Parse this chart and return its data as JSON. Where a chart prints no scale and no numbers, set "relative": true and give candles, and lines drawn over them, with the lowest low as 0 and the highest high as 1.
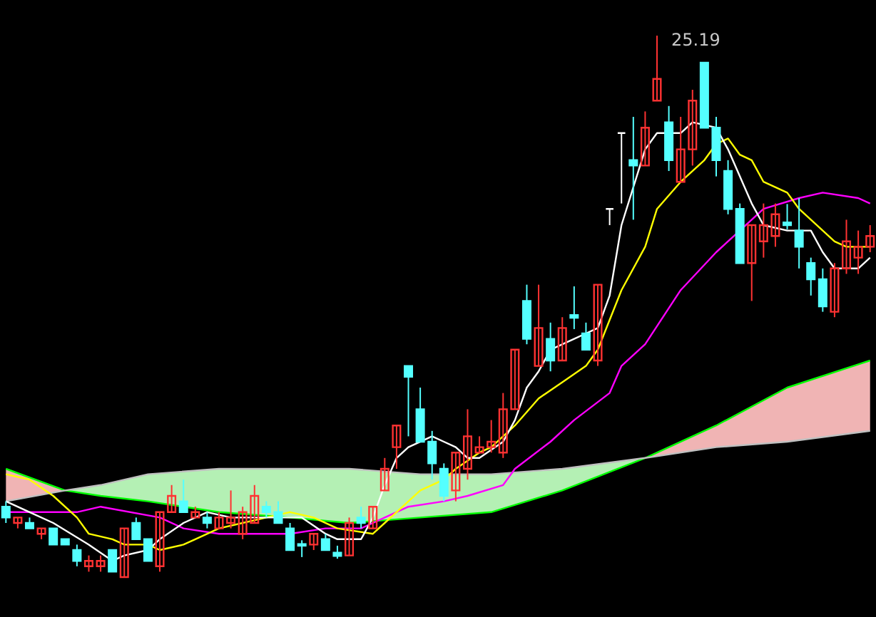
{
  "chart_data": {
    "type": "candlestick",
    "relative": true,
    "categories": [
      null,
      null,
      null,
      null,
      null,
      null,
      null,
      null,
      null,
      null,
      null,
      null,
      null,
      null,
      null,
      null,
      null,
      null,
      null,
      null,
      null,
      null,
      null,
      null,
      null,
      null,
      null,
      null,
      null,
      null,
      null,
      null,
      null,
      null,
      null,
      null,
      null,
      null,
      null,
      null,
      null,
      null,
      null,
      null,
      null,
      null,
      null,
      null,
      null,
      null,
      null,
      null,
      null,
      null,
      null,
      null,
      null,
      null,
      null,
      null,
      null,
      null,
      null,
      null,
      null,
      null,
      null,
      null,
      null,
      null,
      null,
      null,
      null,
      null
    ],
    "ohlc": [
      [
        0.13,
        0.14,
        0.1,
        0.11
      ],
      [
        0.1,
        0.11,
        0.09,
        0.11
      ],
      [
        0.1,
        0.11,
        0.09,
        0.09
      ],
      [
        0.08,
        0.09,
        0.07,
        0.09
      ],
      [
        0.09,
        0.09,
        0.06,
        0.06
      ],
      [
        0.07,
        0.07,
        0.06,
        0.06
      ],
      [
        0.05,
        0.06,
        0.02,
        0.03
      ],
      [
        0.02,
        0.04,
        0.01,
        0.03
      ],
      [
        0.02,
        0.04,
        0.01,
        0.03
      ],
      [
        0.05,
        0.05,
        0.01,
        0.01
      ],
      [
        0,
        0.09,
        0,
        0.09
      ],
      [
        0.1,
        0.11,
        0.07,
        0.07
      ],
      [
        0.07,
        0.07,
        0.03,
        0.03
      ],
      [
        0.02,
        0.12,
        0.01,
        0.12
      ],
      [
        0.12,
        0.17,
        0.12,
        0.15
      ],
      [
        0.14,
        0.18,
        0.12,
        0.12
      ],
      [
        0.11,
        0.13,
        0.11,
        0.12
      ],
      [
        0.11,
        0.12,
        0.09,
        0.1
      ],
      [
        0.09,
        0.12,
        0.09,
        0.11
      ],
      [
        0.1,
        0.16,
        0.09,
        0.11
      ],
      [
        0.08,
        0.13,
        0.07,
        0.12
      ],
      [
        0.1,
        0.17,
        0.1,
        0.15
      ],
      [
        0.13,
        0.14,
        0.11,
        0.12
      ],
      [
        0.12,
        0.14,
        0.1,
        0.1
      ],
      [
        0.09,
        0.1,
        0.05,
        0.05
      ],
      [
        0.061,
        0.068,
        0.037,
        0.058
      ],
      [
        0.06,
        0.08,
        0.05,
        0.08
      ],
      [
        0.07,
        0.08,
        0.05,
        0.05
      ],
      [
        0.045,
        0.058,
        0.034,
        0.039
      ],
      [
        0.04,
        0.11,
        0.04,
        0.1
      ],
      [
        0.11,
        0.13,
        0.09,
        0.1
      ],
      [
        0.09,
        0.13,
        0.09,
        0.13
      ],
      [
        0.16,
        0.22,
        0.16,
        0.2
      ],
      [
        0.24,
        0.28,
        0.2,
        0.28
      ],
      [
        0.39,
        0.39,
        0.26,
        0.37
      ],
      [
        0.31,
        0.35,
        0.25,
        0.25
      ],
      [
        0.25,
        0.27,
        0.18,
        0.21
      ],
      [
        0.2,
        0.21,
        0.14,
        0.15
      ],
      [
        0.16,
        0.23,
        0.14,
        0.23
      ],
      [
        0.2,
        0.31,
        0.18,
        0.26
      ],
      [
        0.23,
        0.26,
        0.23,
        0.24
      ],
      [
        0.24,
        0.29,
        0.23,
        0.25
      ],
      [
        0.23,
        0.34,
        0.22,
        0.31
      ],
      [
        0.31,
        0.42,
        0.31,
        0.42
      ],
      [
        0.51,
        0.54,
        0.43,
        0.44
      ],
      [
        0.39,
        0.54,
        0.39,
        0.46
      ],
      [
        0.44,
        0.47,
        0.38,
        0.4
      ],
      [
        0.4,
        0.48,
        0.4,
        0.46
      ],
      [
        0.484,
        0.537,
        0.458,
        0.479
      ],
      [
        0.45,
        0.47,
        0.42,
        0.42
      ],
      [
        0.4,
        0.54,
        0.39,
        0.54
      ],
      [
        0.68,
        0.68,
        0.65,
        0.68
      ],
      [
        0.82,
        0.82,
        0.69,
        0.82
      ],
      [
        0.77,
        0.85,
        0.66,
        0.76
      ],
      [
        0.76,
        0.86,
        0.76,
        0.83
      ],
      [
        0.88,
        1,
        0.88,
        0.92
      ],
      [
        0.84,
        0.87,
        0.75,
        0.77
      ],
      [
        0.73,
        0.85,
        0.73,
        0.79
      ],
      [
        0.79,
        0.9,
        0.76,
        0.88
      ],
      [
        0.95,
        0.95,
        0.83,
        0.83
      ],
      [
        0.83,
        0.85,
        0.74,
        0.77
      ],
      [
        0.75,
        0.77,
        0.67,
        0.68
      ],
      [
        0.68,
        0.69,
        0.58,
        0.58
      ],
      [
        0.58,
        0.65,
        0.51,
        0.65
      ],
      [
        0.62,
        0.69,
        0.59,
        0.65
      ],
      [
        0.63,
        0.69,
        0.61,
        0.67
      ],
      [
        0.655,
        0.689,
        0.642,
        0.65
      ],
      [
        0.64,
        0.7,
        0.57,
        0.61
      ],
      [
        0.58,
        0.59,
        0.52,
        0.55
      ],
      [
        0.55,
        0.57,
        0.49,
        0.5
      ],
      [
        0.49,
        0.58,
        0.48,
        0.57
      ],
      [
        0.57,
        0.66,
        0.56,
        0.62
      ],
      [
        0.59,
        0.64,
        0.56,
        0.61
      ],
      [
        0.61,
        0.65,
        0.6,
        0.63
      ]
    ],
    "series": [
      {
        "type": "line",
        "color": "#00ff00",
        "values": [
          0.2,
          null,
          null,
          null,
          null,
          0.16,
          null,
          null,
          0.15,
          null,
          null,
          null,
          0.14,
          null,
          null,
          null,
          null,
          null,
          0.12,
          null,
          null,
          null,
          null,
          null,
          0.11,
          null,
          null,
          null,
          null,
          0.1,
          null,
          null,
          null,
          null,
          null,
          0.11,
          null,
          null,
          null,
          null,
          null,
          0.12,
          null,
          null,
          null,
          null,
          null,
          0.16,
          null,
          null,
          null,
          null,
          null,
          null,
          0.22,
          null,
          null,
          null,
          null,
          null,
          0.28,
          null,
          null,
          null,
          null,
          null,
          0.35,
          null,
          null,
          null,
          null,
          null,
          null,
          0.4
        ],
        "upper": [
          0.2,
          null,
          null,
          null,
          null,
          0.16,
          null,
          null,
          null,
          null,
          null,
          null,
          null,
          null,
          null,
          null,
          null,
          null,
          null,
          null,
          null,
          null,
          null,
          null,
          null,
          null,
          null,
          null,
          null,
          null,
          null,
          null,
          null,
          null,
          null,
          null,
          null,
          null,
          null,
          null,
          null,
          null,
          null,
          null,
          null,
          null,
          null,
          null,
          null,
          null,
          null,
          null,
          null,
          null,
          0.22,
          null,
          null,
          null,
          null,
          null,
          0.28,
          null,
          null,
          null,
          null,
          null,
          0.35,
          null,
          null,
          null,
          null,
          null,
          null,
          0.4
        ],
        "lower": [
          0.14,
          null,
          null,
          null,
          null,
          0.16,
          null,
          null,
          null,
          null,
          null,
          null,
          null,
          null,
          null,
          null,
          null,
          null,
          null,
          null,
          null,
          null,
          null,
          null,
          null,
          null,
          null,
          null,
          null,
          null,
          null,
          null,
          null,
          null,
          null,
          null,
          null,
          null,
          null,
          null,
          null,
          null,
          null,
          null,
          null,
          null,
          null,
          null,
          null,
          null,
          null,
          null,
          null,
          null,
          0.22,
          null,
          null,
          null,
          null,
          null,
          0.24,
          null,
          null,
          null,
          null,
          null,
          0.25,
          null,
          null,
          null,
          null,
          null,
          null,
          0.27
        ]
      },
      {
        "type": "line",
        "color": "#c0c0c0",
        "values": [
          0.14,
          null,
          null,
          null,
          null,
          0.16,
          null,
          null,
          0.17,
          null,
          null,
          null,
          0.19,
          null,
          null,
          null,
          null,
          null,
          0.2,
          null,
          null,
          null,
          null,
          null,
          0.2,
          null,
          null,
          null,
          null,
          0.2,
          null,
          null,
          null,
          null,
          null,
          0.19,
          null,
          null,
          null,
          null,
          null,
          0.19,
          null,
          null,
          null,
          null,
          null,
          0.2,
          null,
          null,
          null,
          null,
          null,
          null,
          0.22,
          null,
          null,
          null,
          null,
          null,
          0.24,
          null,
          null,
          null,
          null,
          null,
          0.25,
          null,
          null,
          null,
          null,
          null,
          null,
          0.27
        ],
        "upper": [
          null,
          null,
          null,
          null,
          null,
          0.16,
          null,
          null,
          0.17,
          null,
          null,
          null,
          0.19,
          null,
          null,
          null,
          null,
          null,
          0.2,
          null,
          null,
          null,
          null,
          null,
          0.2,
          null,
          null,
          null,
          null,
          0.2,
          null,
          null,
          null,
          null,
          null,
          0.19,
          null,
          null,
          null,
          null,
          null,
          0.19,
          null,
          null,
          null,
          null,
          null,
          0.2,
          null,
          null,
          null,
          null,
          null,
          null,
          0.22,
          null,
          null,
          null,
          null,
          null,
          null,
          null,
          null,
          null,
          null,
          null,
          null,
          null,
          null,
          null,
          null,
          null,
          null,
          null
        ],
        "lower": [
          null,
          null,
          null,
          null,
          null,
          0.16,
          null,
          null,
          0.15,
          null,
          null,
          null,
          0.14,
          null,
          null,
          null,
          null,
          null,
          0.12,
          null,
          null,
          null,
          null,
          null,
          0.11,
          null,
          null,
          null,
          null,
          0.1,
          null,
          null,
          null,
          null,
          null,
          0.11,
          null,
          null,
          null,
          null,
          null,
          0.12,
          null,
          null,
          null,
          null,
          null,
          0.16,
          null,
          null,
          null,
          null,
          null,
          null,
          0.22,
          null,
          null,
          null,
          null,
          null,
          null,
          null,
          null,
          null,
          null,
          null,
          null,
          null,
          null,
          null,
          null,
          null,
          null,
          null
        ]
      },
      {
        "type": "line",
        "color": "#ff00ff",
        "values": [
          0.12,
          null,
          null,
          null,
          null,
          null,
          0.12,
          null,
          0.13,
          null,
          null,
          null,
          null,
          0.11,
          null,
          0.09,
          null,
          null,
          0.08,
          null,
          0.08,
          null,
          null,
          null,
          0.08,
          null,
          null,
          0.09,
          null,
          null,
          0.09,
          null,
          0.11,
          null,
          0.13,
          null,
          null,
          0.14,
          null,
          0.15,
          null,
          null,
          0.17,
          0.2,
          null,
          null,
          0.25,
          null,
          0.29,
          null,
          null,
          0.34,
          0.39,
          null,
          0.43,
          null,
          null,
          0.53,
          null,
          null,
          0.6,
          null,
          0.64,
          null,
          0.68,
          null,
          null,
          0.7,
          null,
          0.71,
          null,
          null,
          0.7,
          0.69
        ]
      },
      {
        "type": "line",
        "color": "#ffff00",
        "values": [
          0.19,
          null,
          0.18,
          null,
          0.15,
          null,
          0.11,
          0.08,
          null,
          0.07,
          0.06,
          null,
          0.06,
          0.05,
          null,
          0.06,
          0.07,
          null,
          0.09,
          null,
          0.1,
          null,
          0.11,
          null,
          0.12,
          null,
          0.11,
          null,
          0.09,
          null,
          null,
          0.08,
          0.1,
          null,
          0.14,
          0.16,
          null,
          0.18,
          0.2,
          null,
          0.23,
          0.24,
          null,
          0.28,
          null,
          0.33,
          null,
          0.36,
          null,
          0.39,
          0.42,
          null,
          0.53,
          null,
          0.61,
          0.68,
          null,
          0.73,
          null,
          0.77,
          0.8,
          0.81,
          0.78,
          0.77,
          0.73,
          null,
          0.71,
          0.68,
          null,
          0.64,
          0.62,
          0.61,
          null,
          0.61
        ]
      },
      {
        "type": "line",
        "color": "#ffffff",
        "values": [
          0.14,
          null,
          0.12,
          null,
          0.1,
          null,
          null,
          0.06,
          null,
          0.03,
          0.04,
          null,
          0.05,
          0.07,
          null,
          0.1,
          null,
          0.12,
          null,
          0.11,
          null,
          null,
          0.11,
          null,
          null,
          0.11,
          null,
          0.08,
          0.07,
          null,
          0.07,
          0.11,
          0.17,
          0.22,
          0.24,
          null,
          0.26,
          0.25,
          0.24,
          0.22,
          0.22,
          null,
          0.25,
          0.29,
          0.35,
          0.38,
          0.42,
          null,
          0.44,
          0.45,
          0.46,
          0.52,
          0.65,
          null,
          0.79,
          0.82,
          0.82,
          0.82,
          0.84,
          null,
          0.83,
          0.79,
          0.74,
          0.69,
          0.65,
          null,
          0.64,
          null,
          0.64,
          0.6,
          0.57,
          null,
          0.57,
          0.59
        ]
      }
    ],
    "annotations": [
      "25.19"
    ]
  }
}
